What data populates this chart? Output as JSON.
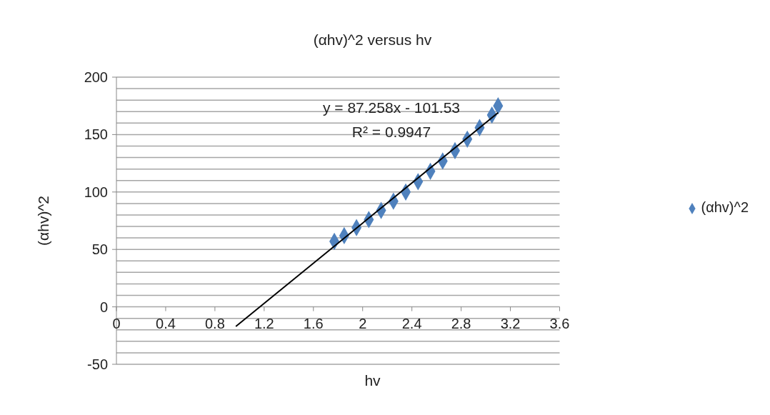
{
  "chart_data": {
    "type": "scatter",
    "title": "(αhv)^2 versus hv",
    "xlabel": "hv",
    "ylabel": "(αhv)^2",
    "annotations": [
      "y = 87.258x - 101.53",
      "R² = 0.9947"
    ],
    "x": [
      1.77,
      1.85,
      1.95,
      2.05,
      2.15,
      2.25,
      2.35,
      2.45,
      2.55,
      2.65,
      2.75,
      2.85,
      2.95,
      3.05,
      3.1
    ],
    "series": [
      {
        "name": "(αhv)^2",
        "color": "#4f81bd",
        "marker": "diamond",
        "values": [
          57,
          62,
          69,
          76,
          84,
          92,
          100,
          109,
          118,
          127,
          136,
          146,
          156,
          167,
          175
        ]
      },
      {
        "type": "line",
        "color": "#000000",
        "marker": "none",
        "x": [
          0.97,
          3.1
        ],
        "values": [
          -17,
          169
        ]
      }
    ],
    "xlim": [
      0,
      3.6
    ],
    "xticks": [
      0,
      0.4,
      0.8,
      1.2,
      1.6,
      2,
      2.4,
      2.8,
      3.2,
      3.6
    ],
    "ylim": [
      -50,
      200
    ],
    "yticks": [
      -50,
      {
        "value": -40,
        "label": null
      },
      {
        "value": -30,
        "label": null
      },
      {
        "value": -20,
        "label": null
      },
      {
        "value": -10,
        "label": null
      },
      0,
      {
        "value": 10,
        "label": null
      },
      {
        "value": 20,
        "label": null
      },
      {
        "value": 30,
        "label": null
      },
      {
        "value": 40,
        "label": null
      },
      50,
      {
        "value": 60,
        "label": null
      },
      {
        "value": 70,
        "label": null
      },
      {
        "value": 80,
        "label": null
      },
      {
        "value": 90,
        "label": null
      },
      100,
      {
        "value": 110,
        "label": null
      },
      {
        "value": 120,
        "label": null
      },
      {
        "value": 130,
        "label": null
      },
      {
        "value": 140,
        "label": null
      },
      150,
      {
        "value": 160,
        "label": null
      },
      {
        "value": 170,
        "label": null
      },
      {
        "value": 180,
        "label": null
      },
      {
        "value": 190,
        "label": null
      },
      200
    ],
    "grid": "y",
    "legend": "right"
  }
}
